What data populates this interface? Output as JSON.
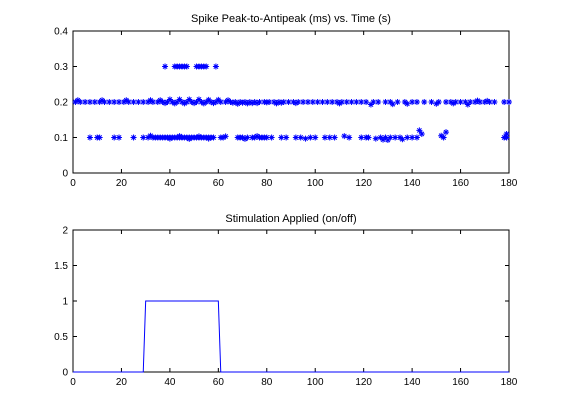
{
  "chart_data": [
    {
      "type": "scatter",
      "title": "Spike Peak-to-Antipeak (ms) vs. Time (s)",
      "xlabel": "",
      "ylabel": "",
      "xlim": [
        0,
        180
      ],
      "ylim": [
        0,
        0.4
      ],
      "xticks": [
        0,
        20,
        40,
        60,
        80,
        100,
        120,
        140,
        160,
        180
      ],
      "yticks": [
        0,
        0.1,
        0.2,
        0.3,
        0.4
      ],
      "grid": false,
      "marker": "asterisk",
      "color": "#0000ff",
      "series": [
        {
          "values_note": "",
          "points": [
            [
              1,
              0.2
            ],
            [
              3,
              0.2
            ],
            [
              5,
              0.2
            ],
            [
              7,
              0.2
            ],
            [
              9,
              0.2
            ],
            [
              11,
              0.2
            ],
            [
              13,
              0.2
            ],
            [
              15,
              0.2
            ],
            [
              17,
              0.2
            ],
            [
              19,
              0.2
            ],
            [
              21,
              0.2
            ],
            [
              23,
              0.2
            ],
            [
              25,
              0.2
            ],
            [
              27,
              0.2
            ],
            [
              29,
              0.2
            ],
            [
              31,
              0.2
            ],
            [
              33,
              0.2
            ],
            [
              35,
              0.2
            ],
            [
              37,
              0.2
            ],
            [
              39,
              0.2
            ],
            [
              41,
              0.2
            ],
            [
              43,
              0.2
            ],
            [
              45,
              0.2
            ],
            [
              47,
              0.2
            ],
            [
              49,
              0.2
            ],
            [
              51,
              0.2
            ],
            [
              53,
              0.2
            ],
            [
              55,
              0.2
            ],
            [
              57,
              0.2
            ],
            [
              59,
              0.2
            ],
            [
              61,
              0.2
            ],
            [
              63,
              0.2
            ],
            [
              65,
              0.2
            ],
            [
              67,
              0.2
            ],
            [
              69,
              0.2
            ],
            [
              71,
              0.2
            ],
            [
              73,
              0.2
            ],
            [
              75,
              0.2
            ],
            [
              77,
              0.2
            ],
            [
              79,
              0.2
            ],
            [
              81,
              0.2
            ],
            [
              83,
              0.2
            ],
            [
              85,
              0.2
            ],
            [
              87,
              0.2
            ],
            [
              89,
              0.2
            ],
            [
              91,
              0.2
            ],
            [
              93,
              0.2
            ],
            [
              95,
              0.2
            ],
            [
              97,
              0.2
            ],
            [
              99,
              0.2
            ],
            [
              101,
              0.2
            ],
            [
              103,
              0.2
            ],
            [
              105,
              0.2
            ],
            [
              107,
              0.2
            ],
            [
              109,
              0.2
            ],
            [
              111,
              0.2
            ],
            [
              113,
              0.2
            ],
            [
              115,
              0.2
            ],
            [
              117,
              0.2
            ],
            [
              119,
              0.2
            ],
            [
              121,
              0.2
            ],
            [
              124,
              0.2
            ],
            [
              126,
              0.2
            ],
            [
              129,
              0.2
            ],
            [
              131,
              0.2
            ],
            [
              134,
              0.2
            ],
            [
              137,
              0.2
            ],
            [
              140,
              0.2
            ],
            [
              142,
              0.2
            ],
            [
              145,
              0.2
            ],
            [
              148,
              0.2
            ],
            [
              151,
              0.2
            ],
            [
              154,
              0.2
            ],
            [
              156,
              0.2
            ],
            [
              158,
              0.2
            ],
            [
              160,
              0.2
            ],
            [
              162,
              0.2
            ],
            [
              164,
              0.2
            ],
            [
              166,
              0.2
            ],
            [
              168,
              0.2
            ],
            [
              170,
              0.2
            ],
            [
              172,
              0.2
            ],
            [
              174,
              0.2
            ],
            [
              178,
              0.2
            ],
            [
              180,
              0.2
            ],
            [
              2,
              0.205
            ],
            [
              12,
              0.205
            ],
            [
              22,
              0.205
            ],
            [
              32,
              0.205
            ],
            [
              36,
              0.205
            ],
            [
              40,
              0.207
            ],
            [
              44,
              0.207
            ],
            [
              48,
              0.207
            ],
            [
              52,
              0.207
            ],
            [
              56,
              0.206
            ],
            [
              60,
              0.206
            ],
            [
              64,
              0.205
            ],
            [
              68,
              0.195
            ],
            [
              72,
              0.196
            ],
            [
              76,
              0.197
            ],
            [
              84,
              0.196
            ],
            [
              92,
              0.197
            ],
            [
              110,
              0.196
            ],
            [
              123,
              0.193
            ],
            [
              132,
              0.194
            ],
            [
              138,
              0.195
            ],
            [
              150,
              0.195
            ],
            [
              157,
              0.196
            ],
            [
              163,
              0.193
            ],
            [
              167,
              0.204
            ],
            [
              171,
              0.203
            ],
            [
              38,
              0.197
            ],
            [
              42,
              0.196
            ],
            [
              46,
              0.196
            ],
            [
              50,
              0.197
            ],
            [
              54,
              0.196
            ],
            [
              58,
              0.197
            ],
            [
              66,
              0.198
            ],
            [
              70,
              0.198
            ],
            [
              74,
              0.197
            ],
            [
              80,
              0.199
            ],
            [
              86,
              0.198
            ],
            [
              38,
              0.3
            ],
            [
              42,
              0.3
            ],
            [
              43,
              0.3
            ],
            [
              44,
              0.3
            ],
            [
              45,
              0.3
            ],
            [
              46,
              0.3
            ],
            [
              47,
              0.3
            ],
            [
              51,
              0.3
            ],
            [
              52,
              0.3
            ],
            [
              53,
              0.3
            ],
            [
              54,
              0.3
            ],
            [
              55,
              0.3
            ],
            [
              59,
              0.3
            ],
            [
              7,
              0.1
            ],
            [
              10,
              0.1
            ],
            [
              11,
              0.1
            ],
            [
              17,
              0.1
            ],
            [
              19,
              0.1
            ],
            [
              25,
              0.1
            ],
            [
              29,
              0.1
            ],
            [
              31,
              0.1
            ],
            [
              33,
              0.1
            ],
            [
              34,
              0.1
            ],
            [
              35,
              0.1
            ],
            [
              36,
              0.1
            ],
            [
              37,
              0.1
            ],
            [
              38,
              0.1
            ],
            [
              39,
              0.1
            ],
            [
              40,
              0.1
            ],
            [
              41,
              0.1
            ],
            [
              42,
              0.1
            ],
            [
              43,
              0.1
            ],
            [
              44,
              0.1
            ],
            [
              45,
              0.1
            ],
            [
              46,
              0.1
            ],
            [
              47,
              0.1
            ],
            [
              48,
              0.1
            ],
            [
              49,
              0.1
            ],
            [
              50,
              0.1
            ],
            [
              51,
              0.1
            ],
            [
              52,
              0.1
            ],
            [
              53,
              0.1
            ],
            [
              54,
              0.1
            ],
            [
              55,
              0.1
            ],
            [
              56,
              0.1
            ],
            [
              57,
              0.1
            ],
            [
              58,
              0.1
            ],
            [
              61,
              0.1
            ],
            [
              62,
              0.1
            ],
            [
              68,
              0.1
            ],
            [
              69,
              0.1
            ],
            [
              70,
              0.1
            ],
            [
              72,
              0.1
            ],
            [
              74,
              0.1
            ],
            [
              75,
              0.1
            ],
            [
              77,
              0.1
            ],
            [
              78,
              0.1
            ],
            [
              79,
              0.1
            ],
            [
              80,
              0.1
            ],
            [
              82,
              0.1
            ],
            [
              86,
              0.1
            ],
            [
              88,
              0.1
            ],
            [
              92,
              0.1
            ],
            [
              94,
              0.1
            ],
            [
              98,
              0.1
            ],
            [
              100,
              0.1
            ],
            [
              104,
              0.1
            ],
            [
              106,
              0.1
            ],
            [
              108,
              0.1
            ],
            [
              114,
              0.1
            ],
            [
              119,
              0.1
            ],
            [
              121,
              0.1
            ],
            [
              122,
              0.1
            ],
            [
              127,
              0.1
            ],
            [
              129,
              0.1
            ],
            [
              131,
              0.1
            ],
            [
              133,
              0.1
            ],
            [
              135,
              0.1
            ],
            [
              138,
              0.1
            ],
            [
              140,
              0.1
            ],
            [
              142,
              0.1
            ],
            [
              153,
              0.1
            ],
            [
              178,
              0.1
            ],
            [
              179,
              0.1
            ],
            [
              32,
              0.105
            ],
            [
              40,
              0.097
            ],
            [
              44,
              0.104
            ],
            [
              48,
              0.096
            ],
            [
              52,
              0.103
            ],
            [
              56,
              0.097
            ],
            [
              63,
              0.103
            ],
            [
              71,
              0.096
            ],
            [
              76,
              0.104
            ],
            [
              96,
              0.097
            ],
            [
              112,
              0.104
            ],
            [
              125,
              0.097
            ],
            [
              128,
              0.094
            ],
            [
              130,
              0.093
            ],
            [
              136,
              0.095
            ],
            [
              143,
              0.12
            ],
            [
              144,
              0.11
            ],
            [
              152,
              0.105
            ],
            [
              154,
              0.115
            ],
            [
              179,
              0.11
            ]
          ]
        }
      ]
    },
    {
      "type": "line",
      "title": "Stimulation Applied (on/off)",
      "xlabel": "",
      "ylabel": "",
      "xlim": [
        0,
        180
      ],
      "ylim": [
        0,
        2
      ],
      "xticks": [
        0,
        20,
        40,
        60,
        80,
        100,
        120,
        140,
        160,
        180
      ],
      "yticks": [
        0,
        0.5,
        1,
        1.5,
        2
      ],
      "grid": false,
      "color": "#0000ff",
      "series": [
        {
          "x": [
            0,
            29,
            30,
            60,
            61,
            180
          ],
          "y": [
            0,
            0,
            1,
            1,
            0,
            0
          ]
        }
      ]
    }
  ]
}
